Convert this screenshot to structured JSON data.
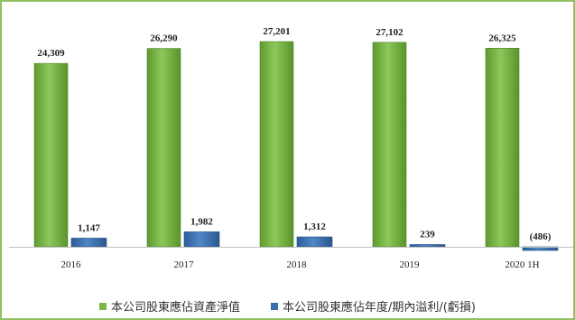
{
  "chart_data": {
    "type": "bar",
    "categories": [
      "2016",
      "2017",
      "2018",
      "2019",
      "2020 1H"
    ],
    "series": [
      {
        "name": "本公司股東應佔資產淨值",
        "values": [
          24309,
          26290,
          27201,
          27102,
          26325
        ],
        "labels": [
          "24,309",
          "26,290",
          "27,201",
          "27,102",
          "26,325"
        ],
        "color": "#7ab648"
      },
      {
        "name": "本公司股東應佔年度/期內溢利/(虧損)",
        "values": [
          1147,
          1982,
          1312,
          239,
          -486
        ],
        "labels": [
          "1,147",
          "1,982",
          "1,312",
          "239",
          "(486)"
        ],
        "color": "#3a6fb0"
      }
    ],
    "ylim": [
      -800,
      28500
    ],
    "grid": false,
    "legend_position": "bottom"
  },
  "colors": {
    "frame_border": "#93bf63",
    "green_bar": "#7ab648",
    "blue_bar": "#3a6fb0"
  }
}
